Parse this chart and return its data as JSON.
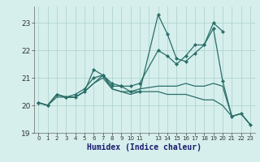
{
  "xlabel": "Humidex (Indice chaleur)",
  "bg_color": "#d6efed",
  "grid_color": "#b0d4d0",
  "line_color": "#2a6e68",
  "marker_color": "#2a6e68",
  "xlim": [
    -0.5,
    23.5
  ],
  "ylim": [
    19.0,
    23.6
  ],
  "yticks": [
    19,
    20,
    21,
    22,
    23
  ],
  "series": [
    {
      "x": [
        0,
        1,
        2,
        3,
        4,
        5,
        6,
        7,
        8,
        9,
        10,
        11,
        13,
        14,
        15,
        16,
        17,
        18,
        19,
        20
      ],
      "y": [
        20.1,
        20.0,
        20.4,
        20.3,
        20.3,
        20.5,
        21.3,
        21.1,
        20.8,
        20.7,
        20.5,
        20.5,
        23.3,
        22.6,
        21.7,
        21.6,
        21.9,
        22.2,
        23.0,
        22.7
      ],
      "marker": true
    },
    {
      "x": [
        0,
        1,
        2,
        3,
        4,
        5,
        6,
        7,
        8,
        9,
        10,
        11,
        13,
        14,
        15,
        16,
        17,
        18,
        19,
        20,
        21,
        22,
        23
      ],
      "y": [
        20.1,
        20.0,
        20.4,
        20.3,
        20.4,
        20.6,
        21.0,
        21.1,
        20.7,
        20.7,
        20.7,
        20.8,
        22.0,
        21.8,
        21.5,
        21.8,
        22.2,
        22.2,
        22.8,
        20.9,
        19.6,
        19.7,
        19.3
      ],
      "marker": true
    },
    {
      "x": [
        0,
        1,
        2,
        3,
        4,
        5,
        6,
        7,
        8,
        9,
        10,
        11,
        13,
        14,
        15,
        16,
        17,
        18,
        19,
        20,
        21,
        22,
        23
      ],
      "y": [
        20.1,
        20.0,
        20.4,
        20.3,
        20.3,
        20.5,
        20.8,
        21.0,
        20.6,
        20.5,
        20.5,
        20.6,
        20.7,
        20.7,
        20.7,
        20.8,
        20.7,
        20.7,
        20.8,
        20.7,
        19.6,
        19.7,
        19.3
      ],
      "marker": false
    },
    {
      "x": [
        0,
        1,
        2,
        3,
        4,
        5,
        6,
        7,
        8,
        9,
        10,
        11,
        13,
        14,
        15,
        16,
        17,
        18,
        19,
        20,
        21,
        22,
        23
      ],
      "y": [
        20.1,
        20.0,
        20.3,
        20.3,
        20.3,
        20.5,
        20.8,
        21.1,
        20.6,
        20.5,
        20.4,
        20.5,
        20.5,
        20.4,
        20.4,
        20.4,
        20.3,
        20.2,
        20.2,
        20.0,
        19.6,
        19.7,
        19.3
      ],
      "marker": false
    }
  ]
}
